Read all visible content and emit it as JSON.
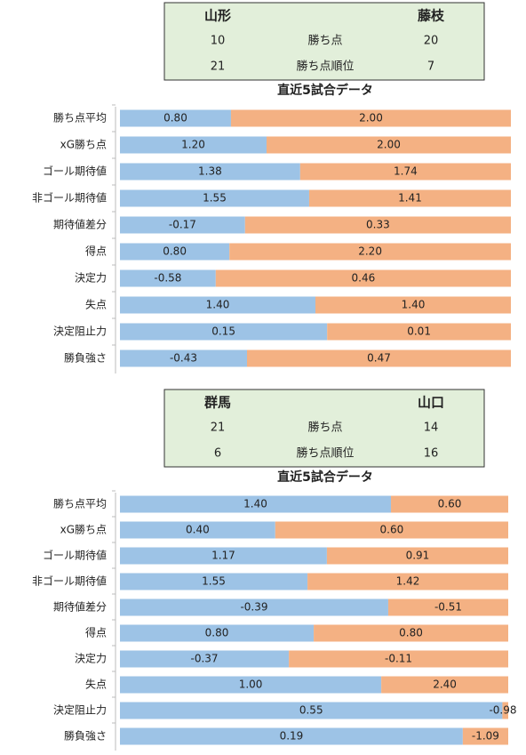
{
  "panels": [
    {
      "header": {
        "left_team": "山形",
        "right_team": "藤枝",
        "rows": [
          [
            "10",
            "勝ち点",
            "20"
          ],
          [
            "21",
            "勝ち点順位",
            "7"
          ]
        ]
      },
      "title": "直近5試合データ",
      "rows": [
        {
          "label": "勝ち点平均",
          "left": "0.80",
          "right": "2.00",
          "left_share": 28.4,
          "right_share": 71.6
        },
        {
          "label": "xG勝ち点",
          "left": "1.20",
          "right": "2.00",
          "left_share": 37.5,
          "right_share": 62.5
        },
        {
          "label": "ゴール期待値",
          "left": "1.38",
          "right": "1.74",
          "left_share": 46.1,
          "right_share": 53.9
        },
        {
          "label": "非ゴール期待値",
          "left": "1.55",
          "right": "1.41",
          "left_share": 48.4,
          "right_share": 51.6
        },
        {
          "label": "期待値差分",
          "left": "-0.17",
          "right": "0.33",
          "left_share": 32.0,
          "right_share": 68.0
        },
        {
          "label": "得点",
          "left": "0.80",
          "right": "2.20",
          "left_share": 28.0,
          "right_share": 72.0
        },
        {
          "label": "決定力",
          "left": "-0.58",
          "right": "0.46",
          "left_share": 24.5,
          "right_share": 75.5
        },
        {
          "label": "失点",
          "left": "1.40",
          "right": "1.40",
          "left_share": 50.0,
          "right_share": 50.0
        },
        {
          "label": "決定阻止力",
          "left": "0.15",
          "right": "0.01",
          "left_share": 53.0,
          "right_share": 47.0
        },
        {
          "label": "勝負強さ",
          "left": "-0.43",
          "right": "0.47",
          "left_share": 32.5,
          "right_share": 67.5
        }
      ]
    },
    {
      "header": {
        "left_team": "群馬",
        "right_team": "山口",
        "rows": [
          [
            "21",
            "勝ち点",
            "14"
          ],
          [
            "6",
            "勝ち点順位",
            "16"
          ]
        ]
      },
      "title": "直近5試合データ",
      "rows": [
        {
          "label": "勝ち点平均",
          "left": "1.40",
          "right": "0.60",
          "left_share": 69.8,
          "right_share": 30.2
        },
        {
          "label": "xG勝ち点",
          "left": "0.40",
          "right": "0.60",
          "left_share": 40.0,
          "right_share": 60.0
        },
        {
          "label": "ゴール期待値",
          "left": "1.17",
          "right": "0.91",
          "left_share": 53.3,
          "right_share": 46.7
        },
        {
          "label": "非ゴール期待値",
          "left": "1.55",
          "right": "1.42",
          "left_share": 48.3,
          "right_share": 51.7
        },
        {
          "label": "期待値差分",
          "left": "-0.39",
          "right": "-0.51",
          "left_share": 69.1,
          "right_share": 30.9
        },
        {
          "label": "得点",
          "left": "0.80",
          "right": "0.80",
          "left_share": 49.9,
          "right_share": 50.1
        },
        {
          "label": "決定力",
          "left": "-0.37",
          "right": "-0.11",
          "left_share": 43.5,
          "right_share": 56.5
        },
        {
          "label": "失点",
          "left": "1.00",
          "right": "2.40",
          "left_share": 67.3,
          "right_share": 32.7
        },
        {
          "label": "決定阻止力",
          "left": "0.55",
          "right": "-0.98",
          "left_share": 98.5,
          "right_share": 1.5
        },
        {
          "label": "勝負強さ",
          "left": "0.19",
          "right": "-1.09",
          "left_share": 88.3,
          "right_share": 11.7
        }
      ]
    }
  ]
}
